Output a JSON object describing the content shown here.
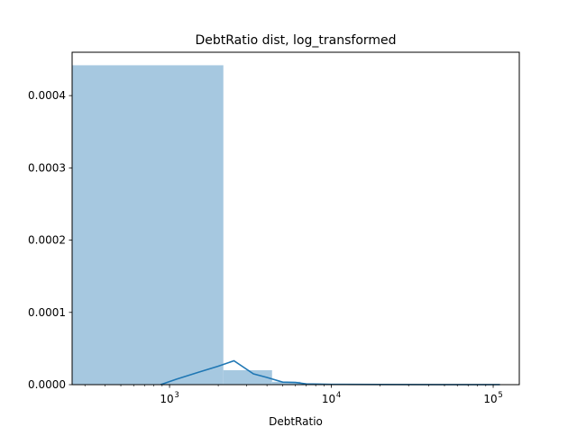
{
  "chart_data": {
    "type": "bar",
    "title": "DebtRatio dist, log_transformed",
    "xlabel": "DebtRatio",
    "ylabel": "",
    "xscale": "log",
    "xlim": [
      250,
      145000
    ],
    "ylim": [
      0,
      0.00046
    ],
    "grid": false,
    "bar_color": "#a6c8e0",
    "line_color": "#1f77b4",
    "x_ticks": [
      {
        "value": 1000,
        "base": "10",
        "exp": "3"
      },
      {
        "value": 10000,
        "base": "10",
        "exp": "4"
      },
      {
        "value": 100000,
        "base": "10",
        "exp": "5"
      }
    ],
    "y_ticks": [
      {
        "value": 0,
        "label": "0.0000"
      },
      {
        "value": 0.0001,
        "label": "0.0001"
      },
      {
        "value": 0.0002,
        "label": "0.0002"
      },
      {
        "value": 0.0003,
        "label": "0.0003"
      },
      {
        "value": 0.0004,
        "label": "0.0004"
      }
    ],
    "bins": [
      {
        "x0": 250,
        "x1": 2150,
        "value": 0.000442
      },
      {
        "x0": 2150,
        "x1": 4300,
        "value": 2e-05
      },
      {
        "x0": 4300,
        "x1": 6450,
        "value": 4e-06
      },
      {
        "x0": 6450,
        "x1": 8600,
        "value": 1.5e-06
      },
      {
        "x0": 8600,
        "x1": 110000,
        "value": 3e-07
      }
    ],
    "kde": {
      "x": [
        880,
        1100,
        1500,
        2000,
        2500,
        3300,
        4000,
        5000,
        6000,
        7000,
        10000,
        20000,
        50000,
        110000
      ],
      "y": [
        0,
        7.5e-06,
        1.7e-05,
        2.55e-05,
        3.3e-05,
        1.5e-05,
        1e-05,
        3.5e-06,
        3e-06,
        1e-06,
        4e-07,
        2e-07,
        1e-07,
        1e-07
      ]
    }
  }
}
